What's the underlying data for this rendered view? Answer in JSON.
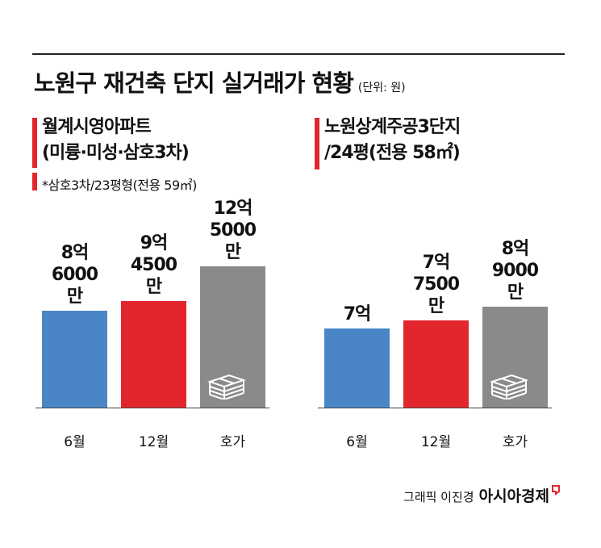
{
  "header": {
    "title": "노원구 재건축 단지 실거래가 현황",
    "unit": "(단위: 원)"
  },
  "chart_data": [
    {
      "type": "bar",
      "title": "월계시영아파트",
      "subtitle": "(미륭·미성·삼호3차)",
      "note": "*삼호3차/23평형(전용 59㎡)",
      "categories": [
        "6월",
        "12월",
        "호가"
      ],
      "values": [
        860000000,
        945000000,
        1250000000
      ],
      "value_labels": [
        "8억 6000만",
        "9억 4500만",
        "12억 5000만"
      ],
      "colors": [
        "#4a86c5",
        "#e3262d",
        "#8a8a8c"
      ]
    },
    {
      "type": "bar",
      "title": "노원상계주공3단지",
      "subtitle": "/24평(전용 58㎡)",
      "categories": [
        "6월",
        "12월",
        "호가"
      ],
      "values": [
        700000000,
        775000000,
        890000000
      ],
      "value_labels": [
        "7억",
        "7억 7500만",
        "8억 9000만"
      ],
      "colors": [
        "#4a86c5",
        "#e3262d",
        "#8a8a8c"
      ]
    }
  ],
  "footer": {
    "credit": "그래픽 이진경",
    "brand": "아시아경제"
  }
}
